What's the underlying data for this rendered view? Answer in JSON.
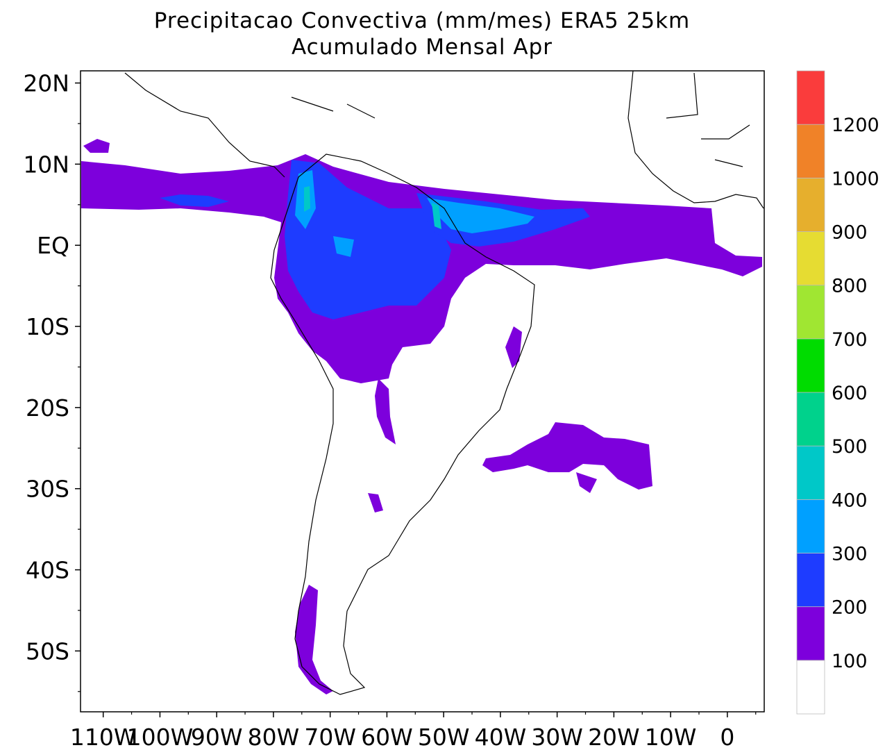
{
  "title": {
    "line1": "Precipitacao Convectiva (mm/mes) ERA5  25km",
    "line2": "Acumulado Mensal Apr"
  },
  "map": {
    "lon_range": [
      -114,
      6.5
    ],
    "lat_range": [
      -57.5,
      21.5
    ],
    "lat_labels": [
      "20N",
      "10N",
      "EQ",
      "10S",
      "20S",
      "30S",
      "40S",
      "50S"
    ],
    "lat_values": [
      20,
      10,
      0,
      -10,
      -20,
      -30,
      -40,
      -50
    ],
    "lon_labels": [
      "110W",
      "100W",
      "90W",
      "80W",
      "70W",
      "60W",
      "50W",
      "40W",
      "30W",
      "20W",
      "10W",
      "0"
    ],
    "lon_values": [
      -110,
      -100,
      -90,
      -80,
      -70,
      -60,
      -50,
      -40,
      -30,
      -20,
      -10,
      0
    ]
  },
  "colorbar": {
    "labels": [
      "100",
      "200",
      "300",
      "400",
      "500",
      "600",
      "700",
      "800",
      "900",
      "1000",
      "1200"
    ],
    "colors": [
      "#ffffff",
      "#7d00dc",
      "#1e3cff",
      "#00a0ff",
      "#00c8c8",
      "#00d28c",
      "#00dc00",
      "#a0e632",
      "#e6dc32",
      "#e6af2d",
      "#f08228",
      "#fa3c3c"
    ]
  },
  "colors": {
    "land_outline": "#000000",
    "level_100_200": "#7d00dc",
    "level_200_300": "#1e3cff",
    "level_300_400": "#00a0ff",
    "level_400_500": "#00c8c8"
  }
}
